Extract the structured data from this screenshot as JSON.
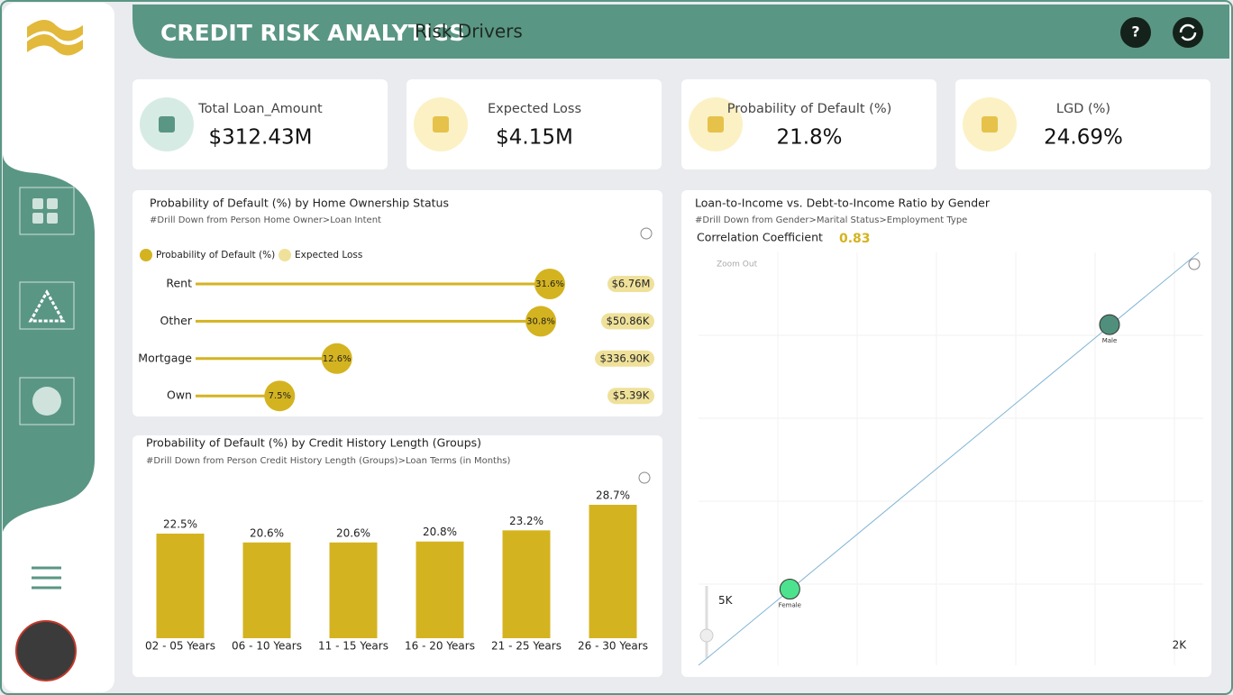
{
  "header": {
    "title": "CREDIT RISK ANALYTICS",
    "subtitle": "Risk Drivers"
  },
  "kpis": [
    {
      "label": "Total Loan_Amount",
      "value": "$312.43M"
    },
    {
      "label": "Expected Loss",
      "value": "$4.15M"
    },
    {
      "label": "Probability of Default (%)",
      "value": "21.8%"
    },
    {
      "label": "LGD (%)",
      "value": "24.69%"
    }
  ],
  "chart_data": [
    {
      "type": "lollipop",
      "title": "Probability of Default (%) by Home Ownership Status",
      "subtitle": "#Drill Down from Person Home Owner>Loan Intent",
      "categories": [
        "Rent",
        "Other",
        "Mortgage",
        "Own"
      ],
      "series": [
        {
          "name": "Probability of Default (%)",
          "color": "#d4b320",
          "values": [
            31.6,
            30.8,
            12.6,
            7.5
          ],
          "value_labels": [
            "31.6%",
            "30.8%",
            "12.6%",
            "7.5%"
          ]
        },
        {
          "name": "Expected Loss",
          "color": "#efe19a",
          "values": [
            6760000,
            50860,
            336900,
            5390
          ],
          "value_labels": [
            "$6.76M",
            "$50.86K",
            "$336.90K",
            "$5.39K"
          ]
        }
      ]
    },
    {
      "type": "bar",
      "title": "Probability of Default (%) by Credit History Length (Groups)",
      "subtitle": "#Drill Down from Person Credit History Length (Groups)>Loan Terms (in Months)",
      "categories": [
        "02 - 05 Years",
        "06 - 10 Years",
        "11 - 15 Years",
        "16 - 20 Years",
        "21 - 25 Years",
        "26 - 30 Years"
      ],
      "values": [
        22.5,
        20.6,
        20.6,
        20.8,
        23.2,
        28.7
      ],
      "value_labels": [
        "22.5%",
        "20.6%",
        "20.6%",
        "20.8%",
        "23.2%",
        "28.7%"
      ],
      "color": "#d4b320"
    },
    {
      "type": "scatter",
      "title": "Loan-to-Income vs. Debt-to-Income Ratio by Gender",
      "subtitle": "#Drill Down from Gender>Marital Status>Employment Type",
      "annotation": {
        "label": "Correlation Coefficient",
        "value": 0.83
      },
      "zoom": "Zoom Out",
      "xlim": [
        0,
        2100
      ],
      "ylim": [
        0,
        32000
      ],
      "xticks": [
        {
          "value": 2000,
          "label": "2K"
        }
      ],
      "yticks": [
        {
          "value": 5000,
          "label": "5K"
        }
      ],
      "categories": [
        "Male",
        "Female"
      ],
      "x": [
        1710,
        380
      ],
      "values": [
        26400,
        5900
      ],
      "colors": [
        "#4f8f7b",
        "#4de38e"
      ]
    }
  ]
}
